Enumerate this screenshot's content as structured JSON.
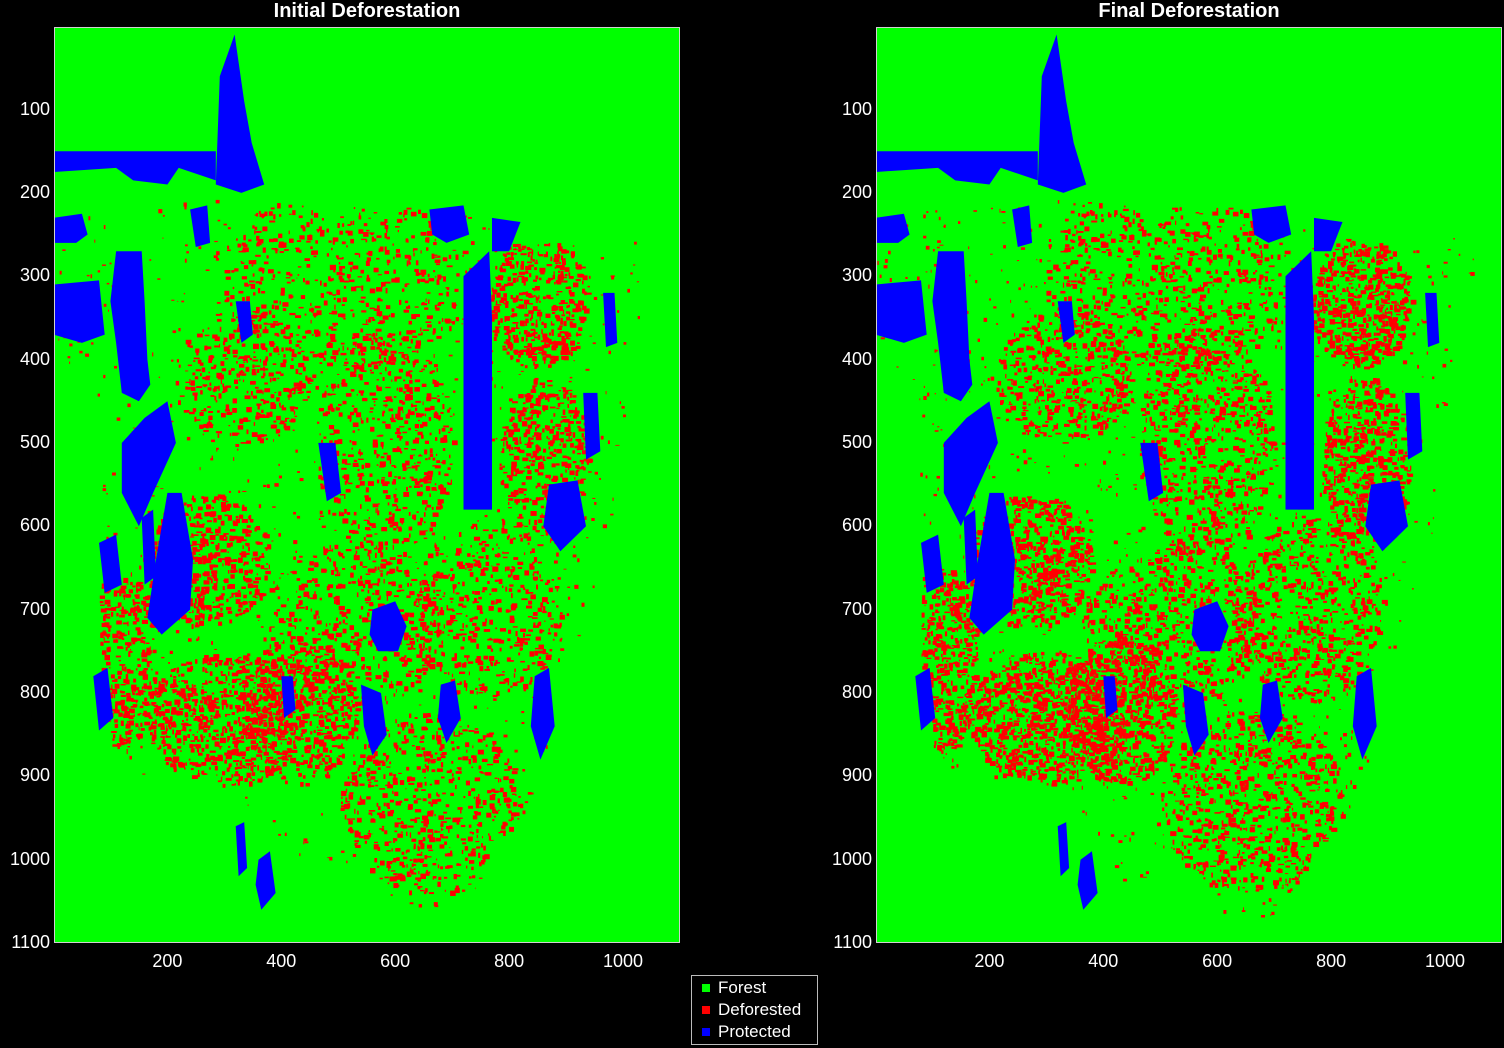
{
  "panels": [
    {
      "title": "Initial Deforestation"
    },
    {
      "title": "Final Deforestation"
    }
  ],
  "y_ticks": [
    "100",
    "200",
    "300",
    "400",
    "500",
    "600",
    "700",
    "800",
    "900",
    "1000",
    "1100"
  ],
  "x_ticks": [
    "200",
    "400",
    "600",
    "800",
    "1000"
  ],
  "legend": [
    {
      "label": "Forest",
      "color": "#00ff00"
    },
    {
      "label": "Deforested",
      "color": "#ff0000"
    },
    {
      "label": "Protected",
      "color": "#0000ff"
    }
  ],
  "chart_data": [
    {
      "type": "heatmap",
      "title": "Initial Deforestation",
      "xlim": [
        1,
        1100
      ],
      "ylim": [
        1100,
        1
      ],
      "x_ticks": [
        200,
        400,
        600,
        800,
        1000
      ],
      "y_ticks": [
        100,
        200,
        300,
        400,
        500,
        600,
        700,
        800,
        900,
        1000,
        1100
      ],
      "categories": [
        "Forest",
        "Deforested",
        "Protected"
      ],
      "colors": [
        "#00ff00",
        "#ff0000",
        "#0000ff"
      ]
    },
    {
      "type": "heatmap",
      "title": "Final Deforestation",
      "xlim": [
        1,
        1100
      ],
      "ylim": [
        1100,
        1
      ],
      "x_ticks": [
        200,
        400,
        600,
        800,
        1000
      ],
      "y_ticks": [
        100,
        200,
        300,
        400,
        500,
        600,
        700,
        800,
        900,
        1000,
        1100
      ],
      "categories": [
        "Forest",
        "Deforested",
        "Protected"
      ],
      "colors": [
        "#00ff00",
        "#ff0000",
        "#0000ff"
      ]
    }
  ]
}
